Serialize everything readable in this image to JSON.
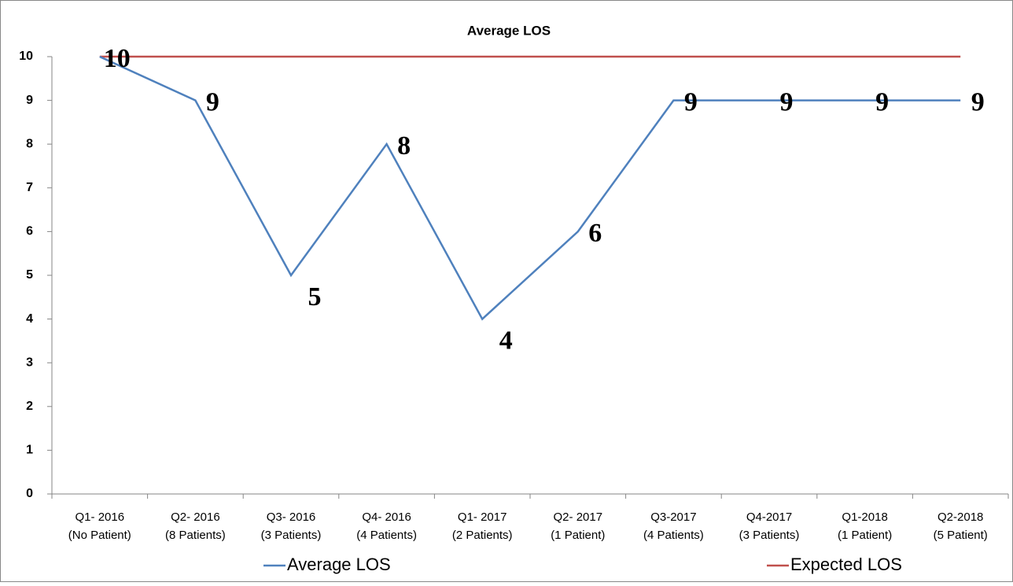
{
  "chart_data": {
    "type": "line",
    "title": "Average LOS",
    "categories": [
      "Q1- 2016\n(No Patient)",
      "Q2- 2016\n(8 Patients)",
      "Q3- 2016\n(3 Patients)",
      "Q4- 2016\n(4 Patients)",
      "Q1- 2017\n(2 Patients)",
      "Q2- 2017\n(1 Patient)",
      "Q3-2017\n(4 Patients)",
      "Q4-2017\n(3 Patients)",
      "Q1-2018\n(1 Patient)",
      "Q2-2018\n(5 Patient)"
    ],
    "series": [
      {
        "name": "Average LOS",
        "color": "#4f81bd",
        "values": [
          10,
          9,
          5,
          8,
          4,
          6,
          9,
          9,
          9,
          9
        ],
        "data_labels": true
      },
      {
        "name": "Expected LOS",
        "color": "#c0504d",
        "values": [
          10,
          10,
          10,
          10,
          10,
          10,
          10,
          10,
          10,
          10
        ],
        "data_labels": false
      }
    ],
    "ylim": [
      0,
      10
    ],
    "yticks": [
      0,
      1,
      2,
      3,
      4,
      5,
      6,
      7,
      8,
      9,
      10
    ],
    "grid": false,
    "legend": "bottom"
  }
}
